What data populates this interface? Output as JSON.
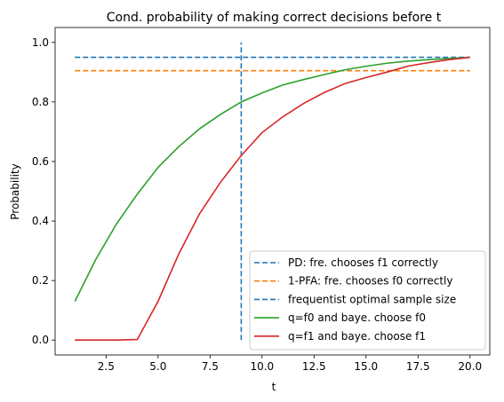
{
  "chart_data": {
    "type": "line",
    "title": "Cond. probability of making correct decisions before t",
    "xlabel": "t",
    "ylabel": "Probability",
    "xlim": [
      0.05,
      20.95
    ],
    "ylim": [
      -0.05,
      1.05
    ],
    "x_ticks": [
      2.5,
      5.0,
      7.5,
      10.0,
      12.5,
      15.0,
      17.5,
      20.0
    ],
    "x_tick_labels": [
      "2.5",
      "5.0",
      "7.5",
      "10.0",
      "12.5",
      "15.0",
      "17.5",
      "20.0"
    ],
    "y_ticks": [
      0.0,
      0.2,
      0.4,
      0.6,
      0.8,
      1.0
    ],
    "y_tick_labels": [
      "0.0",
      "0.2",
      "0.4",
      "0.6",
      "0.8",
      "1.0"
    ],
    "grid": false,
    "legend_position": "lower-right",
    "series": [
      {
        "name": "PD: fre. chooses f1 correctly",
        "style": "dashed",
        "color": "#1f77b4",
        "x": [
          1,
          20
        ],
        "y": [
          0.95,
          0.95
        ]
      },
      {
        "name": "1-PFA: fre. chooses f0 correctly",
        "style": "dashed",
        "color": "#ff7f0e",
        "x": [
          1,
          20
        ],
        "y": [
          0.905,
          0.905
        ]
      },
      {
        "name": "frequentist optimal sample size",
        "style": "dashed",
        "color": "#1f77b4",
        "x": [
          9,
          9
        ],
        "y": [
          0.0,
          1.0
        ]
      },
      {
        "name": "q=f0 and baye. choose f0",
        "style": "solid",
        "color": "#2ca02c",
        "x": [
          1,
          2,
          3,
          4,
          5,
          6,
          7,
          8,
          9,
          10,
          11,
          12,
          13,
          14,
          15,
          16,
          17,
          18,
          19,
          20
        ],
        "y": [
          0.13,
          0.27,
          0.39,
          0.49,
          0.58,
          0.65,
          0.71,
          0.758,
          0.8,
          0.83,
          0.857,
          0.875,
          0.892,
          0.908,
          0.92,
          0.93,
          0.937,
          0.942,
          0.946,
          0.95
        ]
      },
      {
        "name": "q=f1 and baye. choose f1",
        "style": "solid",
        "color": "#d62728",
        "x": [
          1,
          2,
          3,
          4,
          5,
          6,
          7,
          8,
          9,
          10,
          11,
          12,
          13,
          14,
          15,
          16,
          17,
          18,
          19,
          20
        ],
        "y": [
          0.0,
          0.0,
          0.0,
          0.002,
          0.13,
          0.29,
          0.425,
          0.53,
          0.62,
          0.697,
          0.75,
          0.795,
          0.832,
          0.862,
          0.882,
          0.9,
          0.92,
          0.932,
          0.942,
          0.95
        ]
      }
    ]
  }
}
